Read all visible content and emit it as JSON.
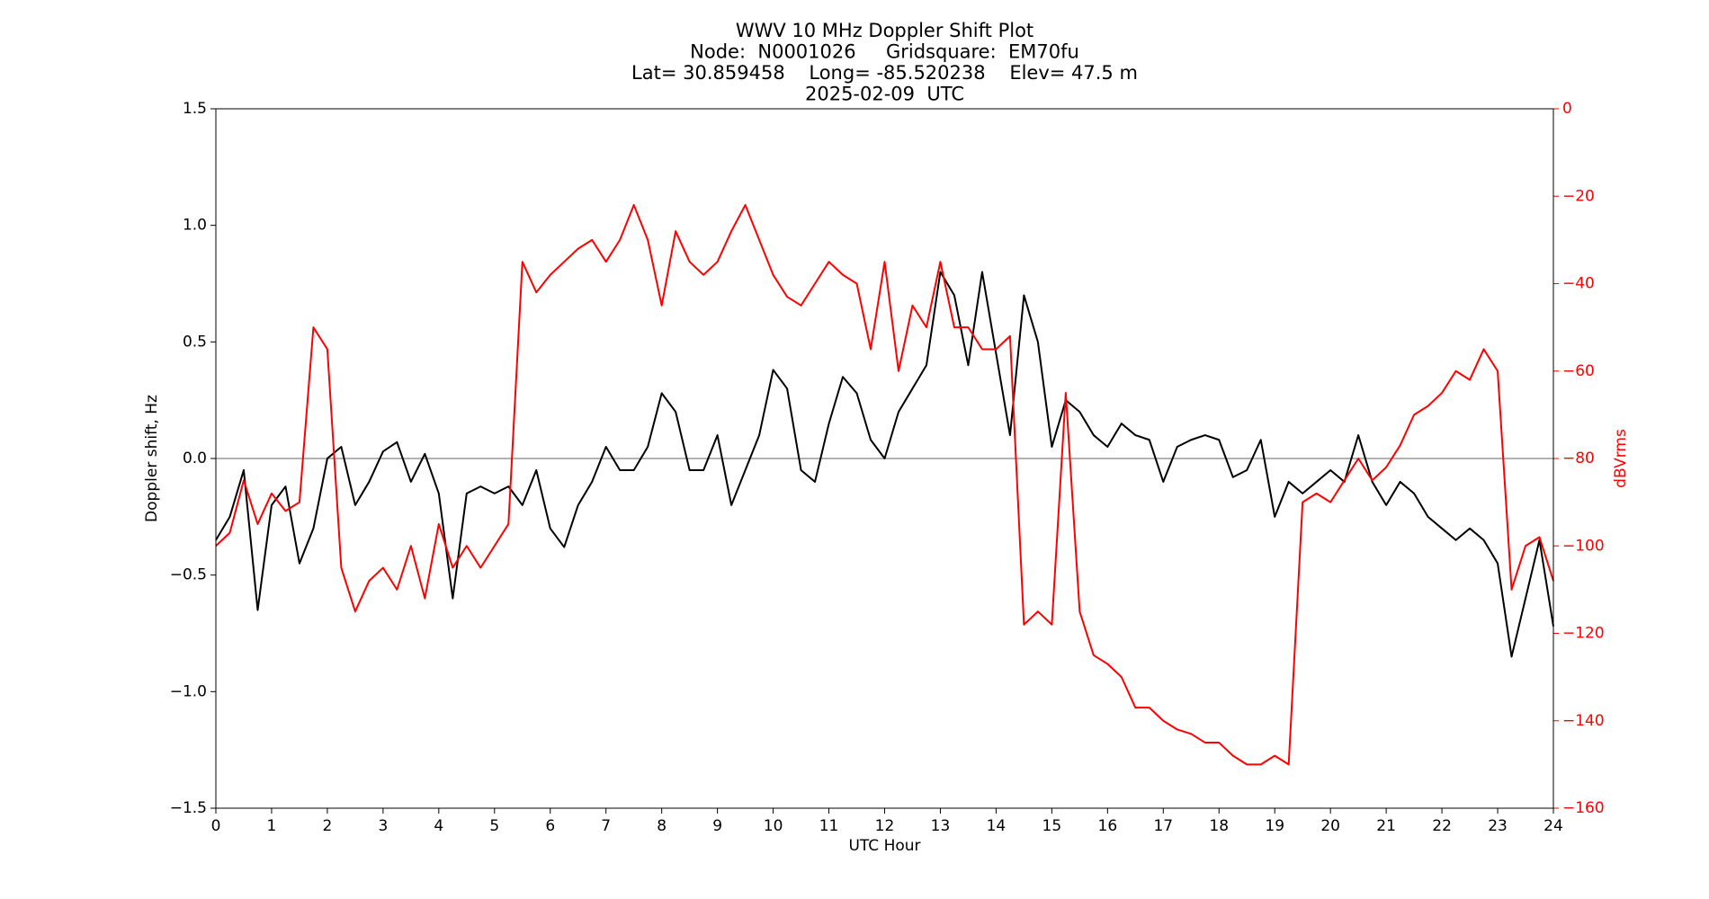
{
  "chart_data": {
    "type": "line",
    "title_lines": [
      "WWV 10 MHz Doppler Shift Plot",
      "Node:  N0001026     Gridsquare:  EM70fu",
      "Lat= 30.859458    Long= -85.520238    Elev= 47.5 m",
      "2025-02-09  UTC"
    ],
    "xlabel": "UTC Hour",
    "ylabel": "Doppler shift, Hz",
    "y2label": "dBVrms",
    "y2color": "#ff0000",
    "xlim": [
      0,
      24
    ],
    "xticks": [
      0,
      1,
      2,
      3,
      4,
      5,
      6,
      7,
      8,
      9,
      10,
      11,
      12,
      13,
      14,
      15,
      16,
      17,
      18,
      19,
      20,
      21,
      22,
      23,
      24
    ],
    "ylim": [
      -1.5,
      1.5
    ],
    "yticks": [
      {
        "value": -1.5,
        "label": "−1.5"
      },
      {
        "value": -1,
        "label": "−1.0"
      },
      {
        "value": -0.5,
        "label": "−0.5"
      },
      {
        "value": 0,
        "label": "0.0"
      },
      0.5,
      {
        "value": 1,
        "label": "1.0"
      },
      1.5
    ],
    "y2lim": [
      -160,
      0
    ],
    "y2ticks": [
      {
        "value": -160,
        "label": "−160"
      },
      {
        "value": -140,
        "label": "−140"
      },
      {
        "value": -120,
        "label": "−120"
      },
      {
        "value": -100,
        "label": "−100"
      },
      {
        "value": -80,
        "label": "−80"
      },
      {
        "value": -60,
        "label": "−60"
      },
      {
        "value": -40,
        "label": "−40"
      },
      {
        "value": -20,
        "label": "−20"
      },
      0
    ],
    "x": [
      0,
      0.25,
      0.5,
      0.75,
      1,
      1.25,
      1.5,
      1.75,
      2,
      2.25,
      2.5,
      2.75,
      3,
      3.25,
      3.5,
      3.75,
      4,
      4.25,
      4.5,
      4.75,
      5,
      5.25,
      5.5,
      5.75,
      6,
      6.25,
      6.5,
      6.75,
      7,
      7.25,
      7.5,
      7.75,
      8,
      8.25,
      8.5,
      8.75,
      9,
      9.25,
      9.5,
      9.75,
      10,
      10.25,
      10.5,
      10.75,
      11,
      11.25,
      11.5,
      11.75,
      12,
      12.25,
      12.5,
      12.75,
      13,
      13.25,
      13.5,
      13.75,
      14,
      14.25,
      14.5,
      14.75,
      15,
      15.25,
      15.5,
      15.75,
      16,
      16.25,
      16.5,
      16.75,
      17,
      17.25,
      17.5,
      17.75,
      18,
      18.25,
      18.5,
      18.75,
      19,
      19.25,
      19.5,
      19.75,
      20,
      20.25,
      20.5,
      20.75,
      21,
      21.25,
      21.5,
      21.75,
      22,
      22.25,
      22.5,
      22.75,
      23,
      23.25,
      23.5,
      23.75,
      24
    ],
    "series": [
      {
        "color": "#000000",
        "values": [
          -0.35,
          -0.25,
          -0.05,
          -0.65,
          -0.2,
          -0.12,
          -0.45,
          -0.3,
          0.0,
          0.05,
          -0.2,
          -0.1,
          0.03,
          0.07,
          -0.1,
          0.02,
          -0.15,
          -0.6,
          -0.15,
          -0.12,
          -0.15,
          -0.12,
          -0.2,
          -0.05,
          -0.3,
          -0.38,
          -0.2,
          -0.1,
          0.05,
          -0.05,
          -0.05,
          0.05,
          0.28,
          0.2,
          -0.05,
          -0.05,
          0.1,
          -0.2,
          -0.05,
          0.1,
          0.38,
          0.3,
          -0.05,
          -0.1,
          0.15,
          0.35,
          0.28,
          0.08,
          0.0,
          0.2,
          0.3,
          0.4,
          0.8,
          0.7,
          0.4,
          0.8,
          0.45,
          0.1,
          0.7,
          0.5,
          0.05,
          0.25,
          0.2,
          0.1,
          0.05,
          0.15,
          0.1,
          0.08,
          -0.1,
          0.05,
          0.08,
          0.1,
          0.08,
          -0.08,
          -0.05,
          0.08,
          -0.25,
          -0.1,
          -0.15,
          -0.1,
          -0.05,
          -0.1,
          0.1,
          -0.1,
          -0.2,
          -0.1,
          -0.15,
          -0.25,
          -0.3,
          -0.35,
          -0.3,
          -0.35,
          -0.45,
          -0.85,
          -0.6,
          -0.35,
          -0.72
        ]
      },
      {
        "color": "#ff0000",
        "axis": "y2",
        "values": [
          -100,
          -97,
          -85,
          -95,
          -88,
          -92,
          -90,
          -50,
          -55,
          -105,
          -115,
          -108,
          -105,
          -110,
          -100,
          -112,
          -95,
          -105,
          -100,
          -105,
          -100,
          -95,
          -35,
          -42,
          -38,
          -35,
          -32,
          -30,
          -35,
          -30,
          -22,
          -30,
          -45,
          -28,
          -35,
          -38,
          -35,
          -28,
          -22,
          -30,
          -38,
          -43,
          -45,
          -40,
          -35,
          -38,
          -40,
          -55,
          -35,
          -60,
          -45,
          -50,
          -35,
          -50,
          -50,
          -55,
          -55,
          -52,
          -118,
          -115,
          -118,
          -65,
          -115,
          -125,
          -127,
          -130,
          -137,
          -137,
          -140,
          -142,
          -143,
          -145,
          -145,
          -148,
          -150,
          -150,
          -148,
          -150,
          -90,
          -88,
          -90,
          -85,
          -80,
          -85,
          -82,
          -77,
          -70,
          -68,
          -65,
          -60,
          -62,
          -55,
          -60,
          -110,
          -100,
          -98,
          -108
        ]
      }
    ]
  }
}
